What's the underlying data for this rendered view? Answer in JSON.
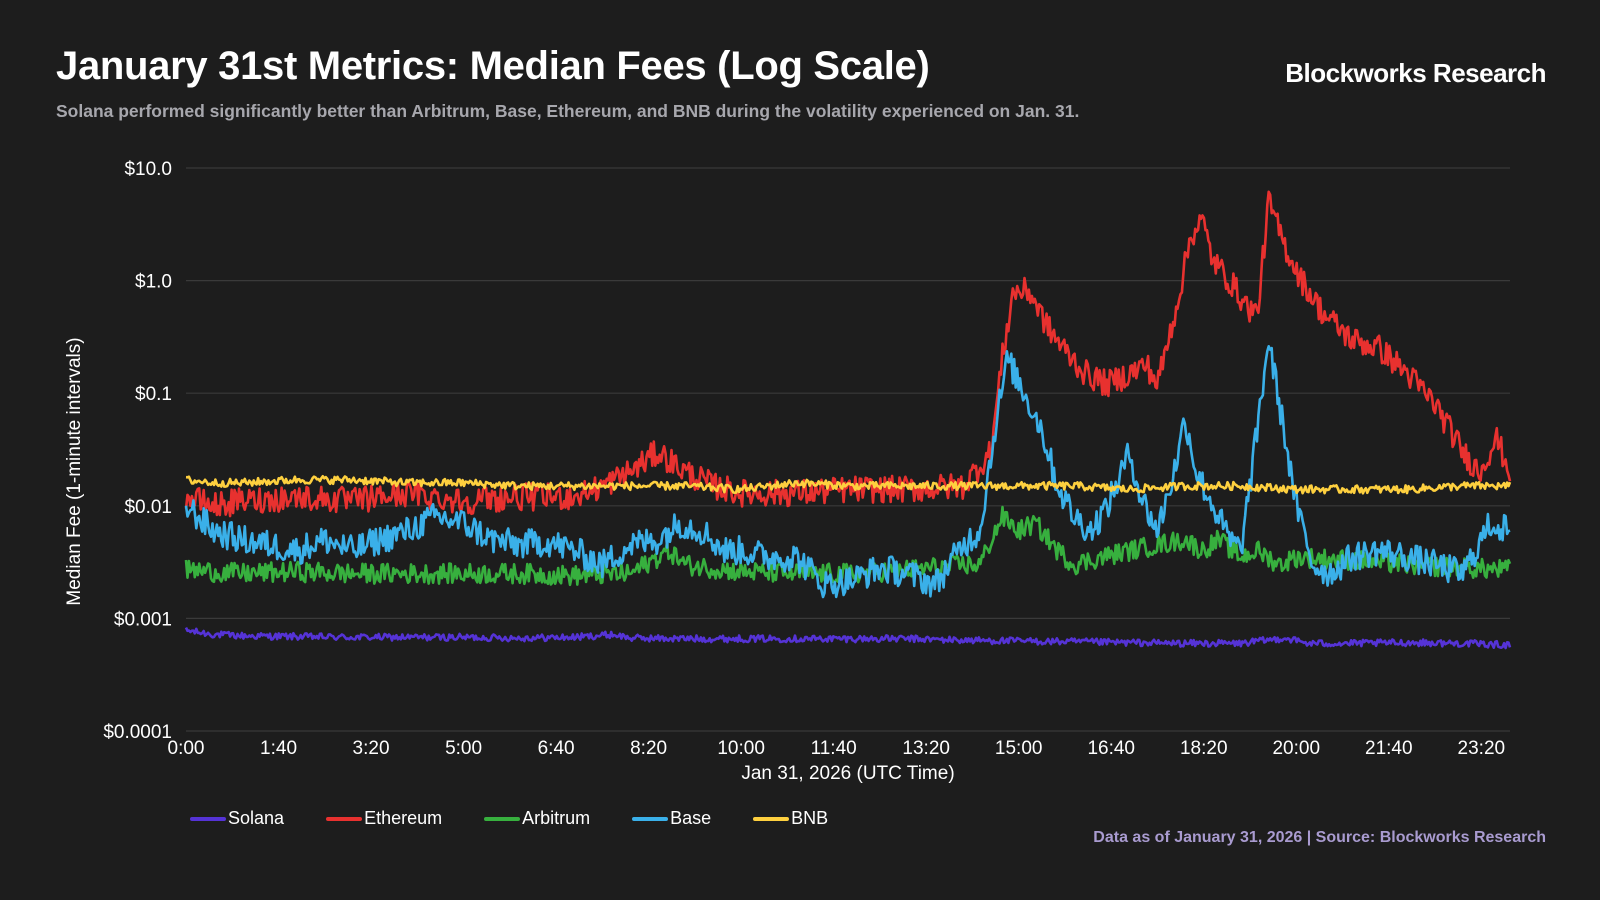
{
  "header": {
    "title": "January 31st Metrics: Median Fees (Log Scale)",
    "brand": "Blockworks Research",
    "subtitle": "Solana performed significantly better than Arbitrum, Base, Ethereum, and BNB during the volatility experienced on Jan. 31."
  },
  "footer": {
    "source": "Data as of January 31, 2026 | Source: Blockworks Research"
  },
  "chart_data": {
    "type": "line",
    "title": "January 31st Metrics: Median Fees (Log Scale)",
    "xlabel": "Jan 31, 2026 (UTC Time)",
    "ylabel": "Median Fee (1-minute intervals)",
    "yscale": "log",
    "ylim": [
      0.0001,
      10
    ],
    "xlim_hours": [
      0,
      23.85
    ],
    "y_ticks": [
      {
        "value": 10,
        "label": "$10.0"
      },
      {
        "value": 1,
        "label": "$1.0"
      },
      {
        "value": 0.1,
        "label": "$0.1"
      },
      {
        "value": 0.01,
        "label": "$0.01"
      },
      {
        "value": 0.001,
        "label": "$0.001"
      },
      {
        "value": 0.0001,
        "label": "$0.0001"
      }
    ],
    "x_ticks": [
      {
        "hour": 0,
        "label": "0:00"
      },
      {
        "hour": 1.6667,
        "label": "1:40"
      },
      {
        "hour": 3.3333,
        "label": "3:20"
      },
      {
        "hour": 5,
        "label": "5:00"
      },
      {
        "hour": 6.6667,
        "label": "6:40"
      },
      {
        "hour": 8.3333,
        "label": "8:20"
      },
      {
        "hour": 10,
        "label": "10:00"
      },
      {
        "hour": 11.6667,
        "label": "11:40"
      },
      {
        "hour": 13.3333,
        "label": "13:20"
      },
      {
        "hour": 15,
        "label": "15:00"
      },
      {
        "hour": 16.6667,
        "label": "16:40"
      },
      {
        "hour": 18.3333,
        "label": "18:20"
      },
      {
        "hour": 20,
        "label": "20:00"
      },
      {
        "hour": 21.6667,
        "label": "21:40"
      },
      {
        "hour": 23.3333,
        "label": "23:20"
      }
    ],
    "grid": true,
    "legend_position": "bottom-left",
    "series": [
      {
        "name": "Solana",
        "color": "#5533d6",
        "points": [
          [
            0,
            0.00078
          ],
          [
            0.5,
            0.00072
          ],
          [
            1,
            0.0007
          ],
          [
            2,
            0.00069
          ],
          [
            3,
            0.00068
          ],
          [
            4,
            0.00068
          ],
          [
            5,
            0.00068
          ],
          [
            6,
            0.00067
          ],
          [
            7,
            0.00068
          ],
          [
            7.7,
            0.00072
          ],
          [
            8,
            0.00067
          ],
          [
            9,
            0.00066
          ],
          [
            10,
            0.00066
          ],
          [
            11,
            0.00066
          ],
          [
            12,
            0.00066
          ],
          [
            13,
            0.00066
          ],
          [
            14,
            0.00064
          ],
          [
            15,
            0.00063
          ],
          [
            16,
            0.00062
          ],
          [
            17,
            0.00061
          ],
          [
            18,
            0.0006
          ],
          [
            19,
            0.0006
          ],
          [
            19.8,
            0.00067
          ],
          [
            20.2,
            0.0006
          ],
          [
            21,
            0.0006
          ],
          [
            22,
            0.00061
          ],
          [
            23,
            0.0006
          ],
          [
            23.85,
            0.00058
          ]
        ]
      },
      {
        "name": "Ethereum",
        "color": "#e8312f",
        "points": [
          [
            0,
            0.012
          ],
          [
            0.5,
            0.01
          ],
          [
            1,
            0.011
          ],
          [
            2,
            0.012
          ],
          [
            3,
            0.011
          ],
          [
            4,
            0.013
          ],
          [
            5,
            0.011
          ],
          [
            6,
            0.012
          ],
          [
            7,
            0.012
          ],
          [
            7.5,
            0.015
          ],
          [
            8,
            0.02
          ],
          [
            8.5,
            0.03
          ],
          [
            9,
            0.02
          ],
          [
            9.5,
            0.015
          ],
          [
            10,
            0.013
          ],
          [
            11,
            0.013
          ],
          [
            12,
            0.014
          ],
          [
            13,
            0.014
          ],
          [
            14,
            0.015
          ],
          [
            14.5,
            0.03
          ],
          [
            14.7,
            0.2
          ],
          [
            14.9,
            0.8
          ],
          [
            15.2,
            0.8
          ],
          [
            15.5,
            0.4
          ],
          [
            15.8,
            0.25
          ],
          [
            16.2,
            0.15
          ],
          [
            16.6,
            0.12
          ],
          [
            17,
            0.15
          ],
          [
            17.3,
            0.18
          ],
          [
            17.5,
            0.12
          ],
          [
            17.7,
            0.3
          ],
          [
            17.9,
            0.8
          ],
          [
            18.1,
            2.5
          ],
          [
            18.3,
            3.5
          ],
          [
            18.5,
            1.5
          ],
          [
            18.8,
            1
          ],
          [
            19.1,
            0.6
          ],
          [
            19.3,
            0.5
          ],
          [
            19.5,
            5
          ],
          [
            19.8,
            2
          ],
          [
            20.1,
            1
          ],
          [
            20.5,
            0.5
          ],
          [
            21,
            0.3
          ],
          [
            21.5,
            0.25
          ],
          [
            22,
            0.15
          ],
          [
            22.5,
            0.08
          ],
          [
            23,
            0.03
          ],
          [
            23.3,
            0.02
          ],
          [
            23.6,
            0.04
          ],
          [
            23.85,
            0.02
          ]
        ]
      },
      {
        "name": "Arbitrum",
        "color": "#37b03e",
        "points": [
          [
            0,
            0.0027
          ],
          [
            1,
            0.0025
          ],
          [
            2,
            0.0026
          ],
          [
            3,
            0.0025
          ],
          [
            4,
            0.0025
          ],
          [
            5,
            0.0025
          ],
          [
            6,
            0.0025
          ],
          [
            7,
            0.0024
          ],
          [
            8,
            0.0025
          ],
          [
            8.7,
            0.004
          ],
          [
            9,
            0.003
          ],
          [
            10,
            0.0026
          ],
          [
            11,
            0.0025
          ],
          [
            12,
            0.0025
          ],
          [
            13,
            0.0027
          ],
          [
            14,
            0.003
          ],
          [
            14.3,
            0.003
          ],
          [
            14.7,
            0.008
          ],
          [
            15,
            0.006
          ],
          [
            15.3,
            0.007
          ],
          [
            15.7,
            0.004
          ],
          [
            16,
            0.003
          ],
          [
            16.5,
            0.0035
          ],
          [
            17,
            0.004
          ],
          [
            17.5,
            0.0045
          ],
          [
            18,
            0.005
          ],
          [
            18.3,
            0.004
          ],
          [
            18.6,
            0.005
          ],
          [
            19,
            0.0035
          ],
          [
            19.3,
            0.004
          ],
          [
            19.7,
            0.003
          ],
          [
            20,
            0.0035
          ],
          [
            21,
            0.0033
          ],
          [
            22,
            0.003
          ],
          [
            23,
            0.0028
          ],
          [
            23.85,
            0.0027
          ]
        ]
      },
      {
        "name": "Base",
        "color": "#3ab0e9",
        "points": [
          [
            0,
            0.01
          ],
          [
            0.5,
            0.006
          ],
          [
            1,
            0.005
          ],
          [
            1.5,
            0.0045
          ],
          [
            2,
            0.004
          ],
          [
            2.5,
            0.005
          ],
          [
            3,
            0.004
          ],
          [
            3.5,
            0.005
          ],
          [
            4,
            0.006
          ],
          [
            4.5,
            0.008
          ],
          [
            5,
            0.007
          ],
          [
            5.5,
            0.005
          ],
          [
            6,
            0.0045
          ],
          [
            6.5,
            0.0048
          ],
          [
            7,
            0.004
          ],
          [
            7.5,
            0.003
          ],
          [
            8,
            0.0045
          ],
          [
            8.5,
            0.005
          ],
          [
            8.9,
            0.007
          ],
          [
            9.3,
            0.006
          ],
          [
            9.7,
            0.004
          ],
          [
            10,
            0.004
          ],
          [
            10.5,
            0.0035
          ],
          [
            11,
            0.0035
          ],
          [
            11.5,
            0.002
          ],
          [
            12,
            0.0022
          ],
          [
            12.5,
            0.0028
          ],
          [
            13,
            0.0025
          ],
          [
            13.5,
            0.002
          ],
          [
            14,
            0.0045
          ],
          [
            14.3,
            0.006
          ],
          [
            14.6,
            0.06
          ],
          [
            14.8,
            0.2
          ],
          [
            15.1,
            0.1
          ],
          [
            15.4,
            0.05
          ],
          [
            15.7,
            0.015
          ],
          [
            16,
            0.008
          ],
          [
            16.3,
            0.006
          ],
          [
            16.6,
            0.01
          ],
          [
            17,
            0.03
          ],
          [
            17.2,
            0.012
          ],
          [
            17.5,
            0.006
          ],
          [
            17.8,
            0.02
          ],
          [
            18,
            0.06
          ],
          [
            18.2,
            0.02
          ],
          [
            18.5,
            0.01
          ],
          [
            18.8,
            0.005
          ],
          [
            19,
            0.004
          ],
          [
            19.2,
            0.02
          ],
          [
            19.5,
            0.3
          ],
          [
            19.8,
            0.04
          ],
          [
            20,
            0.01
          ],
          [
            20.3,
            0.003
          ],
          [
            20.6,
            0.0025
          ],
          [
            21,
            0.0035
          ],
          [
            21.5,
            0.004
          ],
          [
            22,
            0.0035
          ],
          [
            22.5,
            0.003
          ],
          [
            23,
            0.0025
          ],
          [
            23.5,
            0.007
          ],
          [
            23.85,
            0.006
          ]
        ]
      },
      {
        "name": "BNB",
        "color": "#fed03f",
        "points": [
          [
            0,
            0.017
          ],
          [
            0.5,
            0.016
          ],
          [
            1,
            0.016
          ],
          [
            2,
            0.017
          ],
          [
            3,
            0.017
          ],
          [
            4,
            0.016
          ],
          [
            5,
            0.016
          ],
          [
            6,
            0.015
          ],
          [
            7,
            0.015
          ],
          [
            8,
            0.015
          ],
          [
            9,
            0.015
          ],
          [
            10,
            0.014
          ],
          [
            11,
            0.016
          ],
          [
            12,
            0.015
          ],
          [
            13,
            0.015
          ],
          [
            14,
            0.015
          ],
          [
            15,
            0.015
          ],
          [
            16,
            0.015
          ],
          [
            17,
            0.014
          ],
          [
            18,
            0.015
          ],
          [
            19,
            0.015
          ],
          [
            20,
            0.014
          ],
          [
            21,
            0.014
          ],
          [
            22,
            0.014
          ],
          [
            23,
            0.015
          ],
          [
            23.85,
            0.015
          ]
        ]
      }
    ]
  }
}
